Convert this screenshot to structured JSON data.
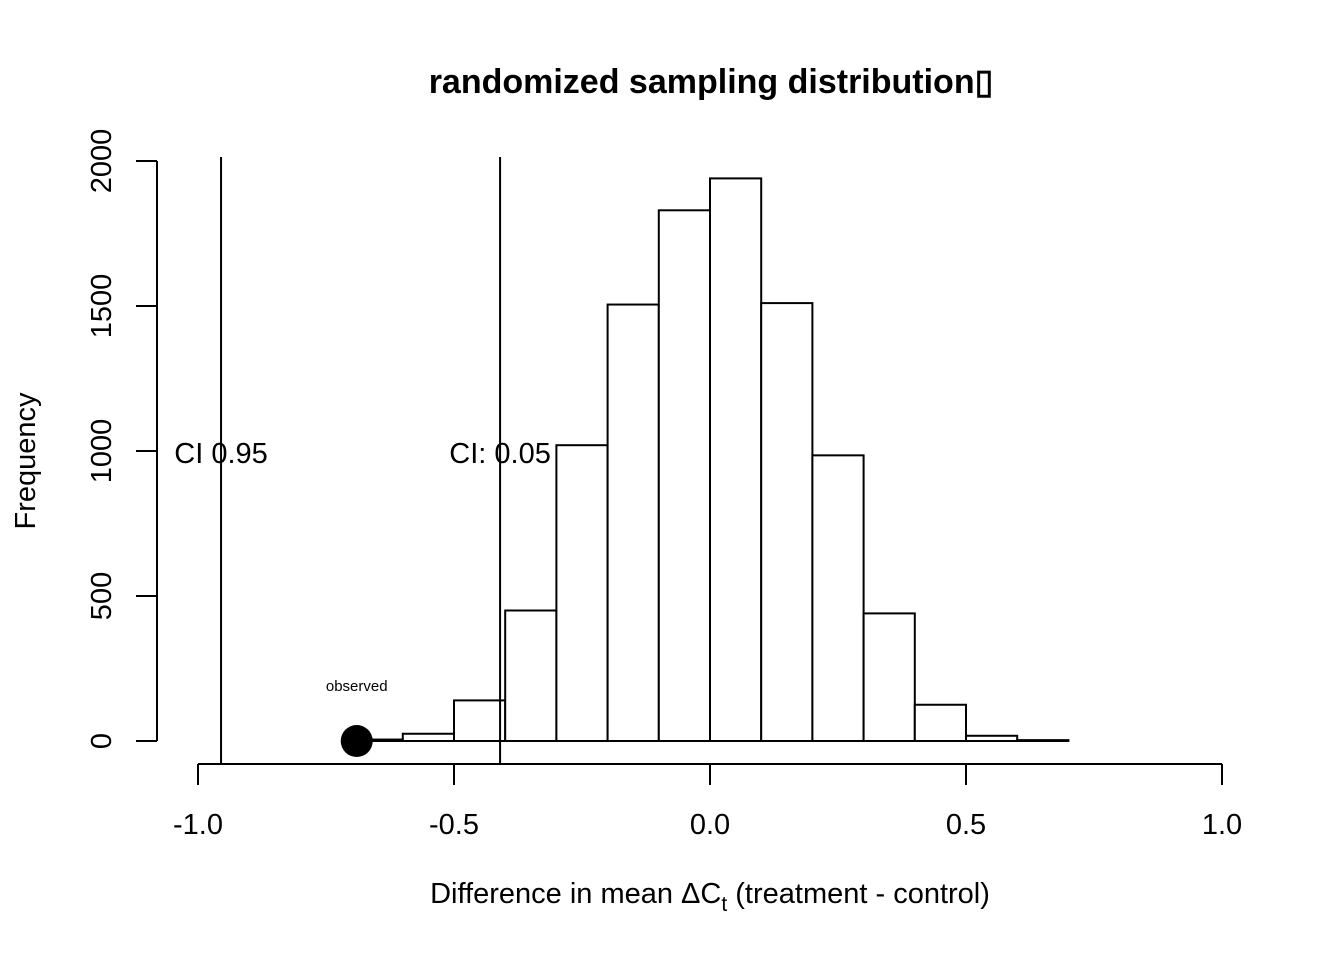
{
  "chart_data": {
    "type": "bar",
    "title": "randomized sampling distribution▯",
    "xlabel_prefix": "Difference in mean ΔC",
    "xlabel_sub": "t",
    "xlabel_suffix": " (treatment - control)",
    "ylabel": "Frequency",
    "xlim": [
      -1.0,
      1.0
    ],
    "ylim": [
      0,
      2000
    ],
    "x_ticks": [
      -1.0,
      -0.5,
      0.0,
      0.5,
      1.0
    ],
    "x_tick_labels": [
      "-1.0",
      "-0.5",
      "0.0",
      "0.5",
      "1.0"
    ],
    "y_ticks": [
      0,
      500,
      1000,
      1500,
      2000
    ],
    "y_tick_labels": [
      "0",
      "500",
      "1000",
      "1500",
      "2000"
    ],
    "bins": [
      {
        "x0": -0.7,
        "x1": -0.6,
        "count": 5
      },
      {
        "x0": -0.6,
        "x1": -0.5,
        "count": 25
      },
      {
        "x0": -0.5,
        "x1": -0.4,
        "count": 140
      },
      {
        "x0": -0.4,
        "x1": -0.3,
        "count": 450
      },
      {
        "x0": -0.3,
        "x1": -0.2,
        "count": 1020
      },
      {
        "x0": -0.2,
        "x1": -0.1,
        "count": 1505
      },
      {
        "x0": -0.1,
        "x1": 0.0,
        "count": 1830
      },
      {
        "x0": 0.0,
        "x1": 0.1,
        "count": 1940
      },
      {
        "x0": 0.1,
        "x1": 0.2,
        "count": 1510
      },
      {
        "x0": 0.2,
        "x1": 0.3,
        "count": 985
      },
      {
        "x0": 0.3,
        "x1": 0.4,
        "count": 440
      },
      {
        "x0": 0.4,
        "x1": 0.5,
        "count": 125
      },
      {
        "x0": 0.5,
        "x1": 0.6,
        "count": 18
      },
      {
        "x0": 0.6,
        "x1": 0.7,
        "count": 3
      }
    ],
    "vlines": [
      {
        "x": -0.955,
        "label": "CI 0.95",
        "label_y": 1000
      },
      {
        "x": -0.41,
        "label": "CI: 0.05",
        "label_y": 1000
      }
    ],
    "observed": {
      "x": -0.69,
      "y": 0,
      "label": "observed"
    }
  }
}
